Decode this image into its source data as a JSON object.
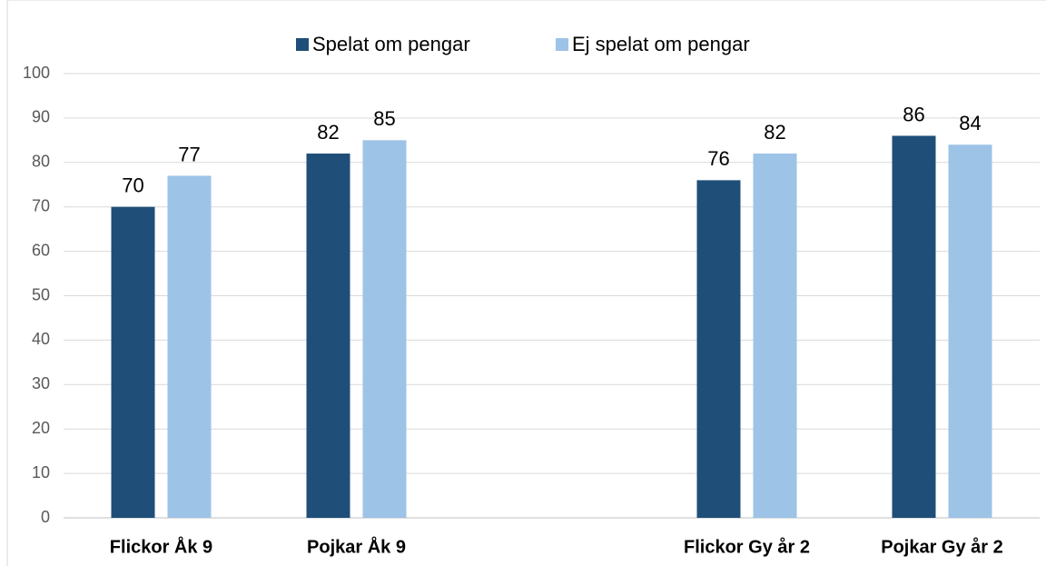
{
  "chart_data": {
    "type": "bar",
    "categories": [
      "Flickor Åk 9",
      "Pojkar Åk 9",
      null,
      "Flickor Gy år 2",
      "Pojkar Gy år 2"
    ],
    "series": [
      {
        "name": "Spelat om pengar",
        "color": "#1f4e79",
        "values": [
          70,
          82,
          null,
          76,
          86
        ]
      },
      {
        "name": "Ej spelat om pengar",
        "color": "#9dc3e6",
        "values": [
          77,
          85,
          null,
          82,
          84
        ]
      }
    ],
    "ylim": [
      0,
      100
    ],
    "yticks": [
      0,
      10,
      20,
      30,
      40,
      50,
      60,
      70,
      80,
      90,
      100
    ],
    "grid": true,
    "legend": "top"
  }
}
